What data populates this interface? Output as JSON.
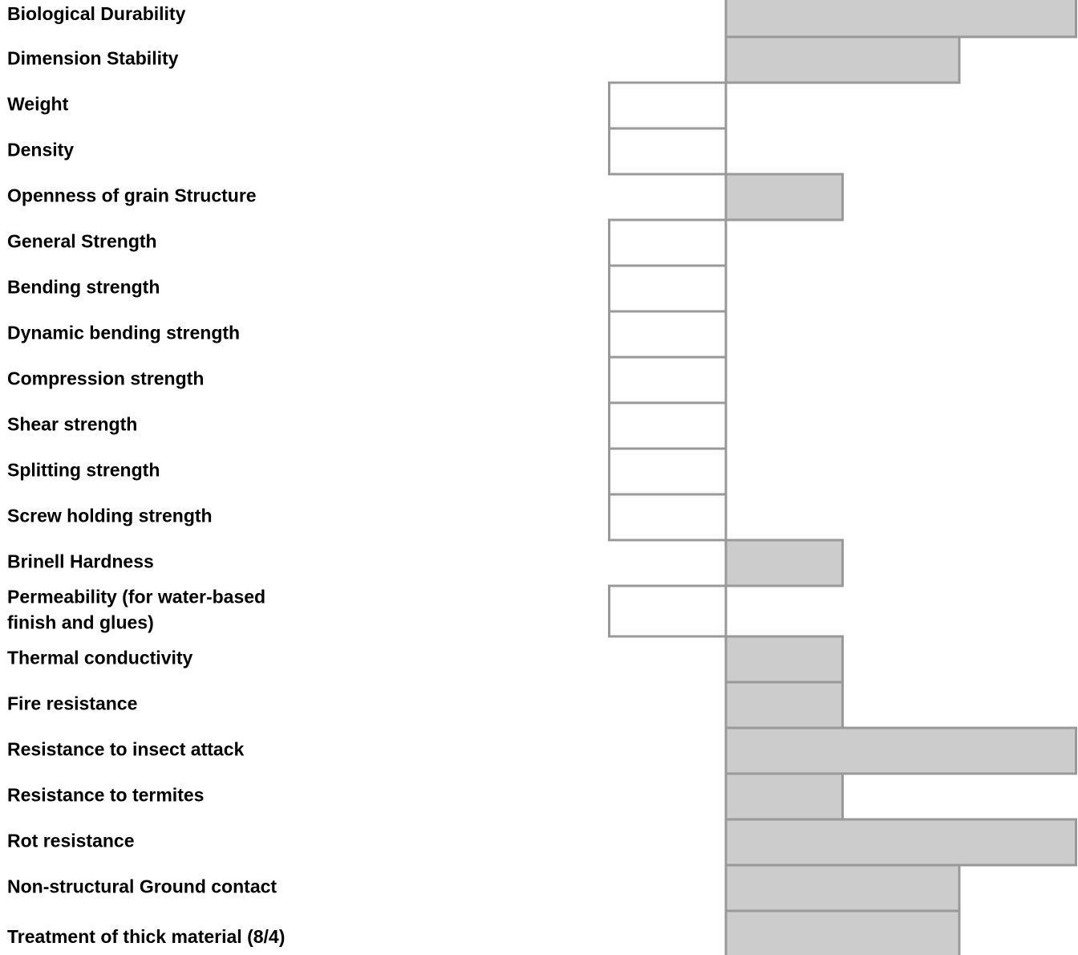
{
  "chart_data": {
    "type": "bar",
    "orientation": "horizontal",
    "baseline": 0,
    "xlim": [
      -1,
      3
    ],
    "grid": false,
    "legend": "none",
    "categories": [
      "Biological Durability",
      "Dimension Stability",
      "Weight",
      "Density",
      "Openness of grain Structure",
      "General Strength",
      "Bending strength",
      "Dynamic bending strength",
      "Compression strength",
      "Shear strength",
      "Splitting strength",
      "Screw holding strength",
      "Brinell Hardness",
      "Permeability (for water-based finish and glues)",
      "Thermal conductivity",
      "Fire resistance",
      "Resistance to insect attack",
      "Resistance to termites",
      "Rot resistance",
      "Non-structural Ground contact",
      "Treatment of thick material (8/4)"
    ],
    "values": [
      3,
      2,
      -1,
      -1,
      1,
      -1,
      -1,
      -1,
      -1,
      -1,
      -1,
      -1,
      1,
      -1,
      1,
      1,
      3,
      1,
      3,
      2,
      2
    ],
    "colors": {
      "positive_fill": "#cccccc",
      "negative_fill": "#ffffff",
      "stroke": "#999999",
      "axis": "#999999",
      "text": "#000000"
    }
  }
}
